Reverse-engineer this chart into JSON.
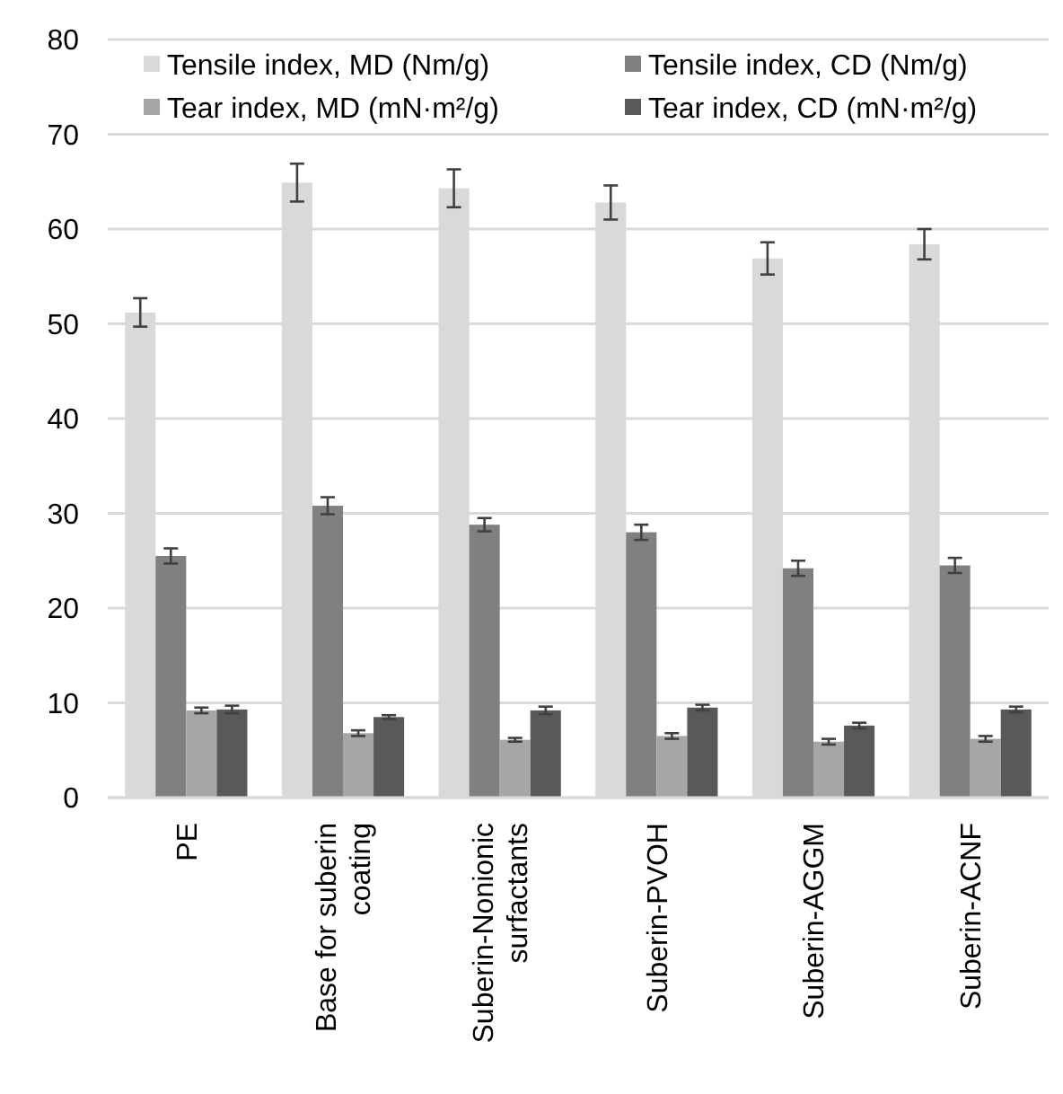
{
  "chart_data": {
    "type": "bar",
    "categories": [
      "PE",
      "Base for suberin coating",
      "Suberin-Nonionic surfactants",
      "Suberin-PVOH",
      "Suberin-AGGM",
      "Suberin-ACNF"
    ],
    "series": [
      {
        "name": "Tensile index, MD (Nm/g)",
        "color": "#d9d9d9",
        "values": [
          51.2,
          64.9,
          64.3,
          62.8,
          56.9,
          58.4
        ],
        "errors": [
          1.5,
          2,
          2,
          1.8,
          1.7,
          1.6
        ]
      },
      {
        "name": "Tensile index, CD (Nm/g)",
        "color": "#808080",
        "values": [
          25.5,
          30.8,
          28.8,
          28.0,
          24.2,
          24.5
        ],
        "errors": [
          0.8,
          0.9,
          0.7,
          0.8,
          0.8,
          0.8
        ]
      },
      {
        "name": "Tear index, MD (mN·m²/g)",
        "color": "#a6a6a6",
        "values": [
          9.2,
          6.8,
          6.1,
          6.5,
          5.9,
          6.2
        ],
        "errors": [
          0.3,
          0.3,
          0.2,
          0.3,
          0.3,
          0.3
        ]
      },
      {
        "name": "Tear index, CD (mN·m²/g)",
        "color": "#595959",
        "values": [
          9.3,
          8.5,
          9.2,
          9.5,
          7.6,
          9.3
        ],
        "errors": [
          0.4,
          0.2,
          0.4,
          0.3,
          0.3,
          0.3
        ]
      }
    ],
    "ylim": [
      0,
      80
    ],
    "yticks": [
      0,
      10,
      20,
      30,
      40,
      50,
      60,
      70,
      80
    ],
    "grid": "y",
    "legend": "top"
  }
}
